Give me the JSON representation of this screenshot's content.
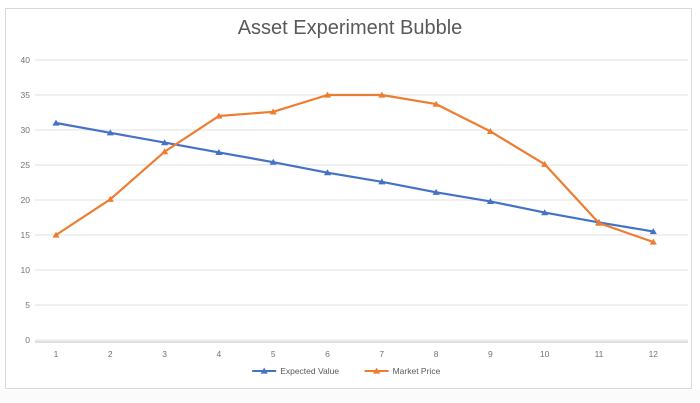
{
  "chart_data": {
    "type": "line",
    "title": "Asset Experiment Bubble",
    "x": [
      1,
      2,
      3,
      4,
      5,
      6,
      7,
      8,
      9,
      10,
      11,
      12
    ],
    "series": [
      {
        "name": "Expected Value",
        "color": "#4472C4",
        "values": [
          31,
          29.6,
          28.2,
          26.8,
          25.4,
          23.9,
          22.6,
          21.1,
          19.8,
          18.2,
          16.8,
          15.5
        ]
      },
      {
        "name": "Market Price",
        "color": "#ED7D31",
        "values": [
          15,
          20.1,
          26.9,
          32,
          32.6,
          35,
          35,
          33.7,
          29.8,
          25.1,
          16.7,
          14
        ]
      }
    ],
    "xlabel": "",
    "ylabel": "",
    "ylim": [
      0,
      40
    ],
    "ytick_step": 5,
    "grid": true,
    "legend_position": "bottom",
    "marker": "triangle"
  },
  "style": {
    "gridline_color": "#e2e2e2",
    "axis_line_color": "#bfbfbf",
    "tick_label_color": "#737373",
    "legend_text_color": "#595959",
    "title_color": "#595959",
    "frame_border_color": "#d9d9d9"
  }
}
